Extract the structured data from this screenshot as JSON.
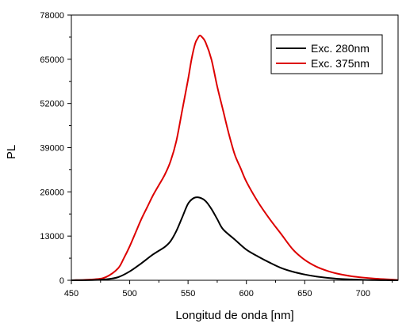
{
  "chart_data": {
    "type": "line",
    "title": "",
    "xlabel": "Longitud de onda [nm]",
    "ylabel": "PL",
    "xlim": [
      450,
      730
    ],
    "ylim": [
      0,
      78000
    ],
    "xticks": [
      450,
      500,
      550,
      600,
      650,
      700
    ],
    "yticks": [
      0,
      13000,
      26000,
      39000,
      52000,
      65000,
      78000
    ],
    "grid": false,
    "legend_position": "top-right",
    "series": [
      {
        "name": "Exc. 280nm",
        "color": "#000000",
        "x": [
          450,
          470,
          480,
          490,
          500,
          510,
          520,
          530,
          535,
          540,
          545,
          550,
          555,
          560,
          565,
          570,
          575,
          580,
          590,
          600,
          610,
          620,
          630,
          640,
          650,
          660,
          670,
          680,
          690,
          700,
          710,
          720,
          730
        ],
        "y": [
          0,
          100,
          300,
          900,
          2600,
          5000,
          7600,
          9800,
          11500,
          14500,
          18500,
          22500,
          24200,
          24300,
          23300,
          21000,
          18000,
          15000,
          12000,
          9000,
          7000,
          5200,
          3600,
          2500,
          1700,
          1100,
          700,
          400,
          250,
          120,
          60,
          20,
          0
        ]
      },
      {
        "name": "Exc. 375nm",
        "color": "#dd0000",
        "x": [
          450,
          470,
          480,
          490,
          495,
          500,
          505,
          510,
          515,
          520,
          525,
          530,
          535,
          540,
          545,
          550,
          553,
          556,
          558,
          560,
          562,
          565,
          570,
          575,
          580,
          585,
          590,
          595,
          600,
          610,
          620,
          630,
          640,
          650,
          660,
          670,
          680,
          690,
          700,
          710,
          720,
          730
        ],
        "y": [
          0,
          300,
          1000,
          3500,
          6500,
          10000,
          14000,
          18000,
          21500,
          25000,
          28000,
          31000,
          35000,
          41000,
          50000,
          59000,
          65000,
          69500,
          71000,
          72000,
          71500,
          70000,
          65000,
          57000,
          50000,
          43000,
          37000,
          33000,
          29000,
          23000,
          18000,
          13500,
          9000,
          6000,
          4000,
          2700,
          1800,
          1200,
          800,
          500,
          300,
          100
        ]
      }
    ]
  }
}
